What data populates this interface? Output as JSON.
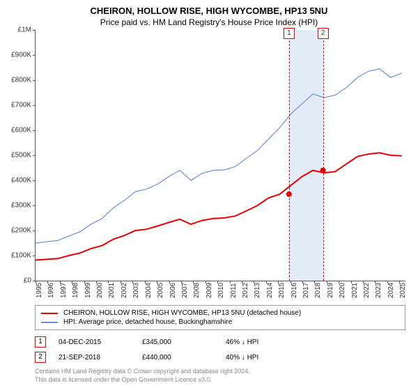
{
  "title": "CHEIRON, HOLLOW RISE, HIGH WYCOMBE, HP13 5NU",
  "subtitle": "Price paid vs. HM Land Registry's House Price Index (HPI)",
  "chart": {
    "type": "line",
    "ylim": [
      0,
      1000000
    ],
    "ytick_step": 100000,
    "y_labels": [
      "£0",
      "£100K",
      "£200K",
      "£300K",
      "£400K",
      "£500K",
      "£600K",
      "£700K",
      "£800K",
      "£900K",
      "£1M"
    ],
    "x_years": [
      1995,
      1996,
      1997,
      1998,
      1999,
      2000,
      2001,
      2002,
      2003,
      2004,
      2005,
      2006,
      2007,
      2008,
      2009,
      2010,
      2011,
      2012,
      2013,
      2014,
      2015,
      2016,
      2017,
      2018,
      2019,
      2020,
      2021,
      2022,
      2023,
      2024,
      2025
    ],
    "series": [
      {
        "id": "property",
        "color": "#e60000",
        "line_width": 2,
        "data": [
          82,
          85,
          88,
          100,
          110,
          128,
          140,
          165,
          180,
          200,
          205,
          218,
          232,
          245,
          225,
          240,
          248,
          250,
          258,
          278,
          300,
          330,
          345,
          380,
          415,
          440,
          430,
          435,
          465,
          495,
          505,
          510,
          500,
          498
        ]
      },
      {
        "id": "hpi",
        "color": "#6a8fd8",
        "line_width": 1.2,
        "data": [
          150,
          155,
          160,
          178,
          195,
          225,
          248,
          290,
          320,
          355,
          365,
          385,
          415,
          440,
          400,
          428,
          440,
          442,
          455,
          488,
          520,
          565,
          610,
          665,
          705,
          745,
          730,
          740,
          770,
          810,
          835,
          845,
          810,
          828
        ]
      }
    ],
    "markers": [
      {
        "label": "1",
        "year": 2015.9,
        "value": 345
      },
      {
        "label": "2",
        "year": 2018.7,
        "value": 440
      }
    ],
    "shade": {
      "from_year": 2015.9,
      "to_year": 2018.7
    },
    "background_color": "#ffffff",
    "axis_color": "#555555",
    "text_color": "#333333"
  },
  "legend": [
    {
      "color": "#e60000",
      "label": "CHEIRON, HOLLOW RISE, HIGH WYCOMBE, HP13 5NU (detached house)"
    },
    {
      "color": "#6a8fd8",
      "label": "HPI: Average price, detached house, Buckinghamshire"
    }
  ],
  "data_rows": [
    {
      "marker": "1",
      "date": "04-DEC-2015",
      "price": "£345,000",
      "delta": "46% ↓ HPI"
    },
    {
      "marker": "2",
      "date": "21-SEP-2018",
      "price": "£440,000",
      "delta": "40% ↓ HPI"
    }
  ],
  "footer_line1": "Contains HM Land Registry data © Crown copyright and database right 2024.",
  "footer_line2": "This data is licensed under the Open Government Licence v3.0."
}
